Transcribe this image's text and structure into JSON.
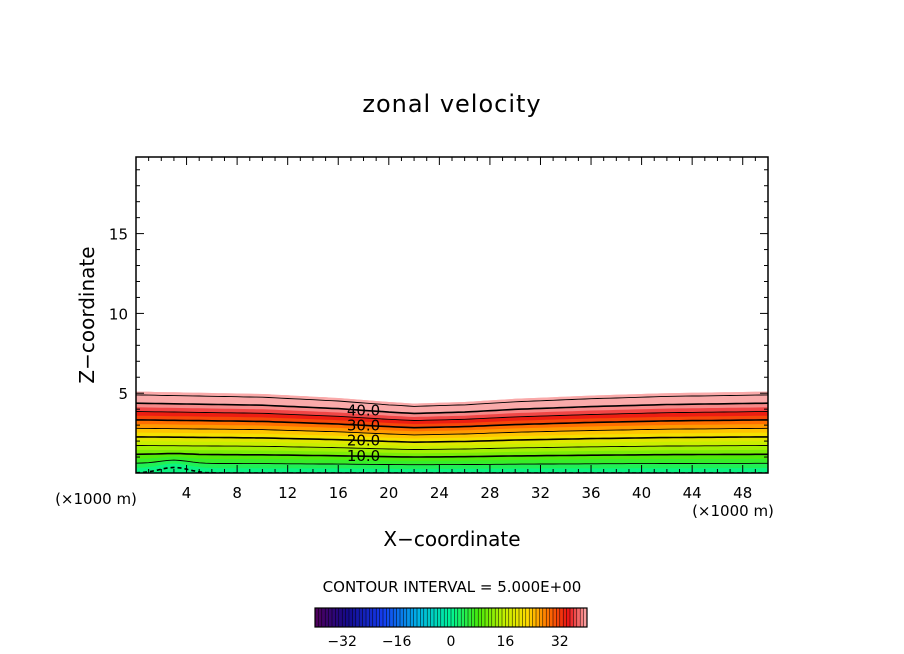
{
  "chart_data": {
    "type": "contour",
    "title": "zonal velocity",
    "xlabel": "X−coordinate",
    "ylabel": "Z−coordinate",
    "x_unit_left": "(×1000 m)",
    "x_unit_right": "(×1000 m)",
    "xlim": [
      0,
      50
    ],
    "ylim": [
      0,
      19.8
    ],
    "x_ticks": [
      4,
      8,
      12,
      16,
      20,
      24,
      28,
      32,
      36,
      40,
      44,
      48
    ],
    "y_ticks": [
      5,
      10,
      15
    ],
    "contour_levels": [
      0,
      5,
      10,
      15,
      20,
      25,
      30,
      35,
      40,
      45
    ],
    "contour_labels": [
      "40.0",
      "30.0",
      "20.0",
      "10.0"
    ],
    "contour_interval_text": "CONTOUR INTERVAL = 5.000E+00",
    "surface_height_profile": {
      "x": [
        0,
        10,
        16,
        20,
        22,
        26,
        30,
        36,
        42,
        50
      ],
      "z": [
        5.1,
        4.95,
        4.7,
        4.45,
        4.35,
        4.45,
        4.65,
        4.85,
        5.0,
        5.1
      ]
    },
    "colorbar": {
      "range": [
        -40,
        40
      ],
      "tick_values": [
        -32,
        -16,
        0,
        16,
        32
      ],
      "tick_labels": [
        "−32",
        "−16",
        "0",
        "16",
        "32"
      ]
    }
  }
}
